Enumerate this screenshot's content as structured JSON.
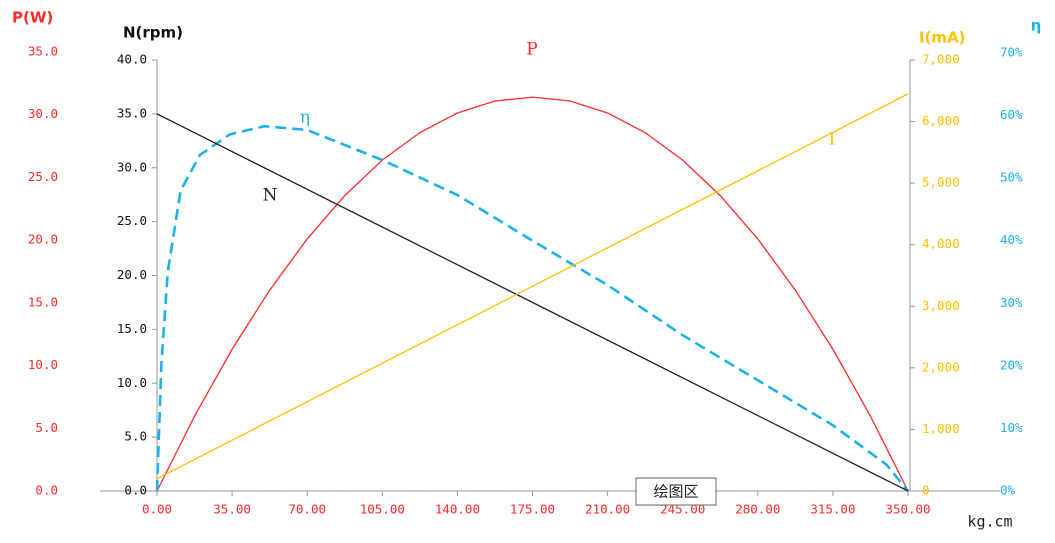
{
  "chart_data": {
    "type": "line",
    "x_label": "kg.cm",
    "xlim": [
      0,
      350
    ],
    "xticks": [
      {
        "value": 0,
        "label": "0.00"
      },
      {
        "value": 35,
        "label": "35.00"
      },
      {
        "value": 70,
        "label": "70.00"
      },
      {
        "value": 105,
        "label": "105.00"
      },
      {
        "value": 140,
        "label": "140.00"
      },
      {
        "value": 175,
        "label": "175.00"
      },
      {
        "value": 210,
        "label": "210.00"
      },
      {
        "value": 245,
        "label": "245.00"
      },
      {
        "value": 280,
        "label": "280.00"
      },
      {
        "value": 315,
        "label": "315.00"
      },
      {
        "value": 350,
        "label": "350.00"
      }
    ],
    "y_axes": [
      {
        "label": "P(W)",
        "color": "#ff2a2a",
        "lim": [
          0,
          35
        ],
        "ticks": [
          {
            "value": 0,
            "label": "0.0"
          },
          {
            "value": 5,
            "label": "5.0"
          },
          {
            "value": 10,
            "label": "10.0"
          },
          {
            "value": 15,
            "label": "15.0"
          },
          {
            "value": 20,
            "label": "20.0"
          },
          {
            "value": 25,
            "label": "25.0"
          },
          {
            "value": 30,
            "label": "30.0"
          },
          {
            "value": 35,
            "label": "35.0"
          }
        ]
      },
      {
        "label": "N(rpm)",
        "color": "#111111",
        "lim": [
          0,
          40
        ],
        "ticks": [
          {
            "value": 0,
            "label": "0.0"
          },
          {
            "value": 5,
            "label": "5.0"
          },
          {
            "value": 10,
            "label": "10.0"
          },
          {
            "value": 15,
            "label": "15.0"
          },
          {
            "value": 20,
            "label": "20.0"
          },
          {
            "value": 25,
            "label": "25.0"
          },
          {
            "value": 30,
            "label": "30.0"
          },
          {
            "value": 35,
            "label": "35.0"
          },
          {
            "value": 40,
            "label": "40.0"
          }
        ]
      },
      {
        "label": "I(mA)",
        "color": "#ffc000",
        "lim": [
          0,
          7000
        ],
        "ticks": [
          0,
          {
            "value": 1000,
            "label": "1,000"
          },
          {
            "value": 2000,
            "label": "2,000"
          },
          {
            "value": 3000,
            "label": "3,000"
          },
          {
            "value": 4000,
            "label": "4,000"
          },
          {
            "value": 5000,
            "label": "5,000"
          },
          {
            "value": 6000,
            "label": "6,000"
          },
          {
            "value": 7000,
            "label": "7,000"
          }
        ]
      },
      {
        "label": "η",
        "color": "#1ab2e8",
        "lim": [
          0,
          70
        ],
        "ticks": [
          {
            "value": 0,
            "label": "0%"
          },
          {
            "value": 10,
            "label": "10%"
          },
          {
            "value": 20,
            "label": "20%"
          },
          {
            "value": 30,
            "label": "30%"
          },
          {
            "value": 40,
            "label": "40%"
          },
          {
            "value": 50,
            "label": "50%"
          },
          {
            "value": 60,
            "label": "60%"
          },
          {
            "value": 70,
            "label": "70%"
          }
        ]
      }
    ],
    "series": [
      {
        "name": "P",
        "color": "#ff2a2a",
        "axis": 0,
        "x": [
          0,
          17.5,
          35,
          52.5,
          70,
          87.5,
          105,
          122.5,
          140,
          157.5,
          175,
          192.5,
          210,
          227.5,
          245,
          262.5,
          280,
          297.5,
          315,
          332.5,
          350
        ],
        "values": [
          0,
          5.97,
          11.3,
          16.01,
          20.1,
          23.55,
          26.38,
          28.57,
          30.14,
          31.09,
          31.4,
          31.09,
          30.14,
          28.57,
          26.38,
          23.55,
          20.1,
          16.01,
          11.3,
          5.97,
          0
        ]
      },
      {
        "name": "η",
        "color": "#1ab2e8",
        "axis": 3,
        "dashed": true,
        "x": [
          0,
          2,
          5,
          11,
          20,
          34,
          50,
          70,
          105,
          140,
          175,
          210,
          245,
          280,
          315,
          340,
          350
        ],
        "values": [
          0,
          20,
          35,
          48,
          53.7,
          57,
          58.3,
          57.7,
          52.9,
          47.3,
          40,
          32.9,
          24.9,
          17.7,
          10.5,
          4.2,
          0
        ]
      },
      {
        "name": "N",
        "color": "#222222",
        "axis": 1,
        "x": [
          0,
          350
        ],
        "values": [
          35,
          0
        ]
      },
      {
        "name": "I",
        "color": "#ffc000",
        "axis": 2,
        "x": [
          0,
          350
        ],
        "values": [
          200,
          6450
        ]
      }
    ],
    "tooltip": "绘图区"
  }
}
